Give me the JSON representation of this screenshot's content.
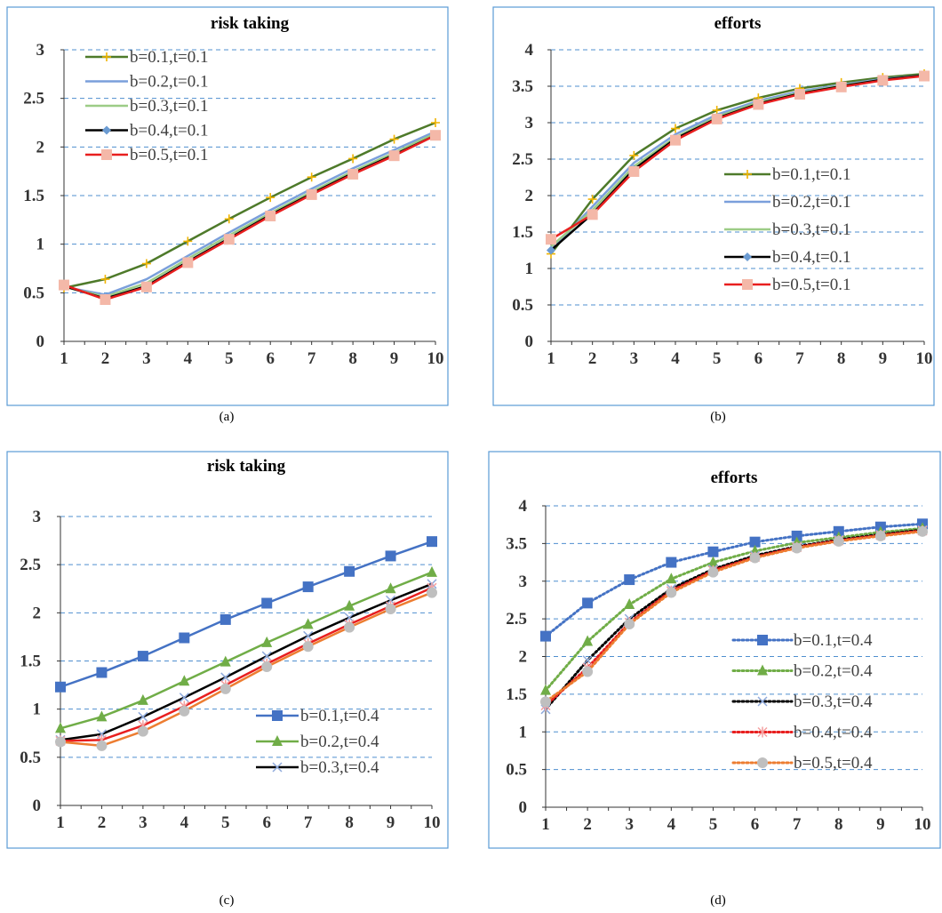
{
  "chart_data": [
    {
      "panel": "(a)",
      "type": "line",
      "title": "risk taking",
      "xlabel": "",
      "ylabel": "",
      "x": [
        1,
        2,
        3,
        4,
        5,
        6,
        7,
        8,
        9,
        10
      ],
      "ylim": [
        0,
        3
      ],
      "yticks": [
        0,
        0.5,
        1,
        1.5,
        2,
        2.5,
        3
      ],
      "ytick_labels": [
        "0",
        "0.5",
        "1",
        "1.5",
        "2",
        "2.5",
        "3"
      ],
      "grid": true,
      "legend_position": "top-left",
      "series": [
        {
          "name": "b=0.1,t=0.1",
          "color": "#4e7a2a",
          "marker": "plus",
          "marker_color": "#f0b400",
          "dash": "solid",
          "values": [
            0.55,
            0.64,
            0.8,
            1.03,
            1.26,
            1.48,
            1.69,
            1.88,
            2.08,
            2.25
          ]
        },
        {
          "name": "b=0.2,t=0.1",
          "color": "#7a9fdb",
          "marker": "none",
          "marker_color": "#7a9fdb",
          "dash": "solid",
          "values": [
            0.56,
            0.48,
            0.64,
            0.88,
            1.12,
            1.35,
            1.57,
            1.78,
            1.97,
            2.16
          ]
        },
        {
          "name": "b=0.3,t=0.1",
          "color": "#9ccc86",
          "marker": "none",
          "marker_color": "#9ccc86",
          "dash": "solid",
          "values": [
            0.56,
            0.46,
            0.6,
            0.85,
            1.09,
            1.32,
            1.54,
            1.75,
            1.94,
            2.14
          ]
        },
        {
          "name": "b=0.4,t=0.1",
          "color": "#000000",
          "marker": "diamond",
          "marker_color": "#6b9bd2",
          "dash": "solid",
          "values": [
            0.57,
            0.44,
            0.57,
            0.82,
            1.06,
            1.3,
            1.52,
            1.73,
            1.92,
            2.12
          ]
        },
        {
          "name": "b=0.5,t=0.1",
          "color": "#e81f1f",
          "marker": "square",
          "marker_color": "#f4b8a8",
          "dash": "solid",
          "values": [
            0.58,
            0.43,
            0.56,
            0.81,
            1.05,
            1.29,
            1.51,
            1.72,
            1.91,
            2.12
          ]
        }
      ]
    },
    {
      "panel": "(b)",
      "type": "line",
      "title": "efforts",
      "xlabel": "",
      "ylabel": "",
      "x": [
        1,
        2,
        3,
        4,
        5,
        6,
        7,
        8,
        9,
        10
      ],
      "ylim": [
        0,
        4
      ],
      "yticks": [
        0,
        0.5,
        1,
        1.5,
        2,
        2.5,
        3,
        3.5,
        4
      ],
      "ytick_labels": [
        "0",
        "0.5",
        "1",
        "1.5",
        "2",
        "2.5",
        "3",
        "3.5",
        "4"
      ],
      "grid": true,
      "legend_position": "center-right",
      "series": [
        {
          "name": "b=0.1,t=0.1",
          "color": "#4e7a2a",
          "marker": "plus",
          "marker_color": "#f0b400",
          "dash": "solid",
          "values": [
            1.2,
            1.95,
            2.55,
            2.92,
            3.17,
            3.34,
            3.47,
            3.55,
            3.62,
            3.67
          ]
        },
        {
          "name": "b=0.2,t=0.1",
          "color": "#7a9fdb",
          "marker": "none",
          "marker_color": "#7a9fdb",
          "dash": "solid",
          "values": [
            1.25,
            1.85,
            2.45,
            2.84,
            3.11,
            3.3,
            3.43,
            3.52,
            3.6,
            3.65
          ]
        },
        {
          "name": "b=0.3,t=0.1",
          "color": "#9ccc86",
          "marker": "none",
          "marker_color": "#9ccc86",
          "dash": "solid",
          "values": [
            1.3,
            1.8,
            2.4,
            2.8,
            3.08,
            3.28,
            3.41,
            3.51,
            3.59,
            3.65
          ]
        },
        {
          "name": "b=0.4,t=0.1",
          "color": "#000000",
          "marker": "diamond",
          "marker_color": "#6b9bd2",
          "dash": "solid",
          "values": [
            1.25,
            1.75,
            2.36,
            2.78,
            3.06,
            3.26,
            3.4,
            3.5,
            3.59,
            3.65
          ]
        },
        {
          "name": "b=0.5,t=0.1",
          "color": "#e81f1f",
          "marker": "square",
          "marker_color": "#f4b8a8",
          "dash": "solid",
          "values": [
            1.4,
            1.74,
            2.33,
            2.76,
            3.05,
            3.25,
            3.39,
            3.49,
            3.58,
            3.64
          ]
        }
      ]
    },
    {
      "panel": "(c)",
      "type": "line",
      "title": "risk taking",
      "xlabel": "",
      "ylabel": "",
      "x": [
        1,
        2,
        3,
        4,
        5,
        6,
        7,
        8,
        9,
        10
      ],
      "ylim": [
        0,
        3
      ],
      "yticks": [
        0,
        0.5,
        1,
        1.5,
        2,
        2.5,
        3
      ],
      "ytick_labels": [
        "0",
        "0.5",
        "1",
        "1.5",
        "2",
        "2.5",
        "3"
      ],
      "grid": true,
      "legend_position": "bottom-right",
      "series": [
        {
          "name": "b=0.1,t=0.4",
          "color": "#4472c4",
          "marker": "square",
          "marker_color": "#4472c4",
          "dash": "solid",
          "in_legend": true,
          "values": [
            1.23,
            1.38,
            1.55,
            1.74,
            1.93,
            2.1,
            2.27,
            2.43,
            2.59,
            2.74
          ]
        },
        {
          "name": "b=0.2,t=0.4",
          "color": "#70ad47",
          "marker": "triangle",
          "marker_color": "#70ad47",
          "dash": "solid",
          "in_legend": true,
          "values": [
            0.8,
            0.92,
            1.09,
            1.29,
            1.49,
            1.69,
            1.88,
            2.07,
            2.25,
            2.42
          ]
        },
        {
          "name": "b=0.3,t=0.4",
          "color": "#000000",
          "marker": "x",
          "marker_color": "#8faadc",
          "dash": "solid",
          "in_legend": true,
          "values": [
            0.68,
            0.74,
            0.92,
            1.12,
            1.33,
            1.55,
            1.76,
            1.95,
            2.13,
            2.3
          ]
        },
        {
          "name": "",
          "color": "#e81f1f",
          "marker": "asterisk",
          "marker_color": "#f4a0a0",
          "dash": "solid",
          "in_legend": false,
          "values": [
            0.67,
            0.68,
            0.83,
            1.03,
            1.25,
            1.47,
            1.68,
            1.88,
            2.07,
            2.26
          ]
        },
        {
          "name": "",
          "color": "#ed7d31",
          "marker": "circle",
          "marker_color": "#bfbfbf",
          "dash": "solid",
          "in_legend": false,
          "values": [
            0.66,
            0.62,
            0.77,
            0.98,
            1.21,
            1.44,
            1.65,
            1.85,
            2.04,
            2.21
          ]
        }
      ]
    },
    {
      "panel": "(d)",
      "type": "line",
      "title": "efforts",
      "xlabel": "",
      "ylabel": "",
      "x": [
        1,
        2,
        3,
        4,
        5,
        6,
        7,
        8,
        9,
        10
      ],
      "ylim": [
        0,
        4
      ],
      "yticks": [
        0,
        0.5,
        1,
        1.5,
        2,
        2.5,
        3,
        3.5,
        4
      ],
      "ytick_labels": [
        "0",
        "0.5",
        "1",
        "1.5",
        "2",
        "2.5",
        "3",
        "3.5",
        "4"
      ],
      "grid": true,
      "legend_position": "center-right",
      "series": [
        {
          "name": "b=0.1,t=0.4",
          "color": "#4472c4",
          "marker": "square",
          "marker_color": "#4472c4",
          "dash": "dotted",
          "values": [
            2.27,
            2.71,
            3.02,
            3.25,
            3.39,
            3.52,
            3.6,
            3.66,
            3.72,
            3.76
          ]
        },
        {
          "name": "b=0.2,t=0.4",
          "color": "#70ad47",
          "marker": "triangle",
          "marker_color": "#70ad47",
          "dash": "dotted",
          "values": [
            1.55,
            2.2,
            2.69,
            3.03,
            3.25,
            3.4,
            3.51,
            3.58,
            3.65,
            3.7
          ]
        },
        {
          "name": "b=0.3,t=0.4",
          "color": "#000000",
          "marker": "x",
          "marker_color": "#8faadc",
          "dash": "dotted",
          "values": [
            1.3,
            1.95,
            2.5,
            2.9,
            3.16,
            3.34,
            3.46,
            3.55,
            3.62,
            3.68
          ]
        },
        {
          "name": "b=0.4,t=0.4",
          "color": "#e81f1f",
          "marker": "asterisk",
          "marker_color": "#f4a0a0",
          "dash": "dotted",
          "values": [
            1.35,
            1.85,
            2.45,
            2.87,
            3.14,
            3.32,
            3.45,
            3.54,
            3.61,
            3.67
          ]
        },
        {
          "name": "b=0.5,t=0.4",
          "color": "#ed7d31",
          "marker": "circle",
          "marker_color": "#bfbfbf",
          "dash": "dotted",
          "values": [
            1.4,
            1.8,
            2.43,
            2.85,
            3.12,
            3.31,
            3.44,
            3.53,
            3.6,
            3.66
          ]
        }
      ]
    }
  ],
  "captions": [
    "(a)",
    "(b)",
    "(c)",
    "(d)"
  ]
}
